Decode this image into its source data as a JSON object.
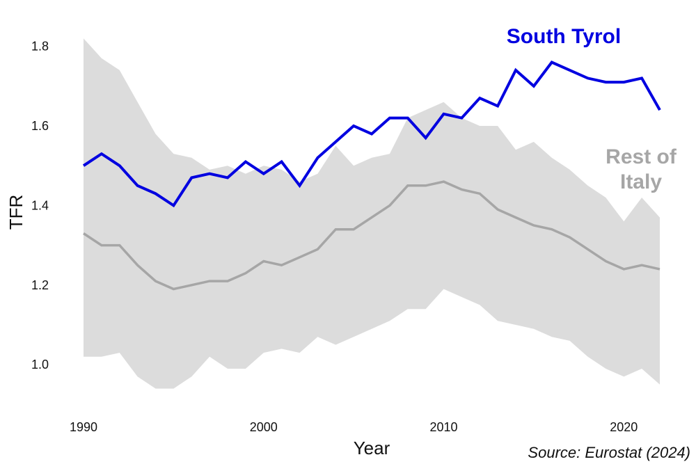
{
  "chart_data": {
    "type": "line",
    "xlabel": "Year",
    "ylabel": "TFR",
    "xlim": [
      1990,
      2022
    ],
    "ylim": [
      0.92,
      1.85
    ],
    "xticks": [
      1990,
      2000,
      2010,
      2020
    ],
    "yticks": [
      1.0,
      1.2,
      1.4,
      1.6,
      1.8
    ],
    "ytick_labels": [
      "1.0",
      "1.2",
      "1.4",
      "1.6",
      "1.8"
    ],
    "grid": false,
    "legend": "none (direct labels)",
    "x": [
      1990,
      1991,
      1992,
      1993,
      1994,
      1995,
      1996,
      1997,
      1998,
      1999,
      2000,
      2001,
      2002,
      2003,
      2004,
      2005,
      2006,
      2007,
      2008,
      2009,
      2010,
      2011,
      2012,
      2013,
      2014,
      2015,
      2016,
      2017,
      2018,
      2019,
      2020,
      2021,
      2022
    ],
    "series": [
      {
        "name": "South Tyrol",
        "color": "#0000e0",
        "values": [
          1.5,
          1.53,
          1.5,
          1.45,
          1.43,
          1.4,
          1.47,
          1.48,
          1.47,
          1.51,
          1.48,
          1.51,
          1.45,
          1.52,
          1.56,
          1.6,
          1.58,
          1.62,
          1.62,
          1.57,
          1.63,
          1.62,
          1.67,
          1.65,
          1.74,
          1.7,
          1.76,
          1.74,
          1.72,
          1.71,
          1.71,
          1.72,
          1.64
        ]
      },
      {
        "name": "Rest of Italy",
        "color": "#a6a6a6",
        "values": [
          1.33,
          1.3,
          1.3,
          1.25,
          1.21,
          1.19,
          1.2,
          1.21,
          1.21,
          1.23,
          1.26,
          1.25,
          1.27,
          1.29,
          1.34,
          1.34,
          1.37,
          1.4,
          1.45,
          1.45,
          1.46,
          1.44,
          1.43,
          1.39,
          1.37,
          1.35,
          1.34,
          1.32,
          1.29,
          1.26,
          1.24,
          1.25,
          1.24
        ]
      }
    ],
    "range_band": {
      "color": "#dcdcdc",
      "upper": [
        1.82,
        1.77,
        1.74,
        1.66,
        1.58,
        1.53,
        1.52,
        1.49,
        1.5,
        1.48,
        1.5,
        1.49,
        1.46,
        1.48,
        1.55,
        1.5,
        1.52,
        1.53,
        1.62,
        1.64,
        1.66,
        1.62,
        1.6,
        1.6,
        1.54,
        1.56,
        1.52,
        1.49,
        1.45,
        1.42,
        1.36,
        1.42,
        1.37
      ],
      "lower": [
        1.02,
        1.02,
        1.03,
        0.97,
        0.94,
        0.94,
        0.97,
        1.02,
        0.99,
        0.99,
        1.03,
        1.04,
        1.03,
        1.07,
        1.05,
        1.07,
        1.09,
        1.11,
        1.14,
        1.14,
        1.19,
        1.17,
        1.15,
        1.11,
        1.1,
        1.09,
        1.07,
        1.06,
        1.02,
        0.99,
        0.97,
        0.99,
        0.95
      ]
    },
    "labels": {
      "south_tyrol": "South Tyrol",
      "rest_line1": "Rest of",
      "rest_line2": "Italy"
    },
    "source": "Source: Eurostat (2024)"
  }
}
